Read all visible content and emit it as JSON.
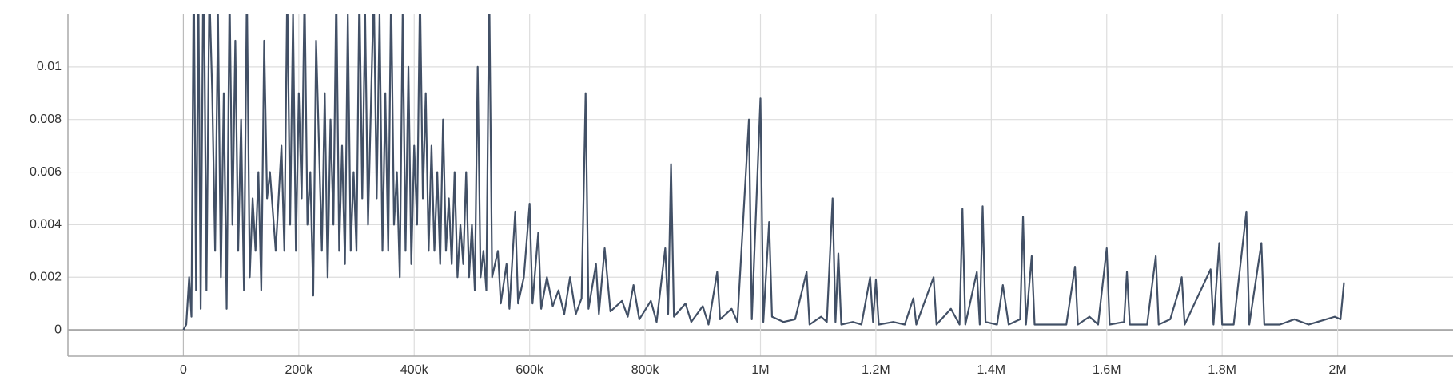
{
  "chart_data": {
    "type": "line",
    "color": "#425066",
    "grid": true,
    "xlim": [
      -200000,
      2200000
    ],
    "ylim": [
      -0.001,
      0.012
    ],
    "xticks": [
      0,
      {
        "value": 200000,
        "label": "200k"
      },
      {
        "value": 400000,
        "label": "400k"
      },
      {
        "value": 600000,
        "label": "600k"
      },
      {
        "value": 800000,
        "label": "800k"
      },
      {
        "value": 1000000,
        "label": "1M"
      },
      {
        "value": 1200000,
        "label": "1.2M"
      },
      {
        "value": 1400000,
        "label": "1.4M"
      },
      {
        "value": 1600000,
        "label": "1.6M"
      },
      {
        "value": 1800000,
        "label": "1.8M"
      },
      {
        "value": 2000000,
        "label": "2M"
      }
    ],
    "yticks": [
      0,
      0.002,
      0.004,
      0.006,
      0.008,
      0.01
    ],
    "x": [
      0,
      5000,
      10000,
      14000,
      18000,
      22000,
      26000,
      30000,
      35000,
      40000,
      45000,
      50000,
      55000,
      60000,
      65000,
      70000,
      75000,
      80000,
      85000,
      90000,
      95000,
      100000,
      105000,
      110000,
      115000,
      120000,
      125000,
      130000,
      135000,
      140000,
      145000,
      150000,
      160000,
      170000,
      175000,
      180000,
      185000,
      190000,
      195000,
      200000,
      205000,
      210000,
      215000,
      220000,
      225000,
      230000,
      240000,
      245000,
      250000,
      255000,
      260000,
      265000,
      270000,
      275000,
      280000,
      285000,
      290000,
      295000,
      300000,
      305000,
      310000,
      315000,
      320000,
      330000,
      335000,
      340000,
      345000,
      350000,
      355000,
      360000,
      365000,
      370000,
      375000,
      380000,
      385000,
      390000,
      395000,
      400000,
      405000,
      410000,
      415000,
      420000,
      425000,
      430000,
      435000,
      440000,
      445000,
      450000,
      455000,
      460000,
      465000,
      470000,
      475000,
      480000,
      485000,
      490000,
      495000,
      500000,
      505000,
      510000,
      515000,
      520000,
      525000,
      530000,
      535000,
      545000,
      550000,
      560000,
      565000,
      575000,
      580000,
      590000,
      600000,
      605000,
      615000,
      620000,
      630000,
      640000,
      650000,
      660000,
      670000,
      680000,
      690000,
      697000,
      702000,
      715000,
      720000,
      730000,
      740000,
      760000,
      770000,
      780000,
      790000,
      810000,
      820000,
      835000,
      840000,
      845000,
      850000,
      870000,
      880000,
      900000,
      910000,
      925000,
      930000,
      950000,
      960000,
      980000,
      985000,
      1000000,
      1005000,
      1015000,
      1020000,
      1040000,
      1060000,
      1080000,
      1085000,
      1105000,
      1115000,
      1125000,
      1130000,
      1135000,
      1140000,
      1160000,
      1175000,
      1190000,
      1195000,
      1200000,
      1205000,
      1230000,
      1250000,
      1265000,
      1270000,
      1300000,
      1305000,
      1330000,
      1345000,
      1350000,
      1355000,
      1375000,
      1380000,
      1385000,
      1390000,
      1410000,
      1420000,
      1430000,
      1450000,
      1455000,
      1460000,
      1470000,
      1475000,
      1500000,
      1530000,
      1545000,
      1550000,
      1570000,
      1585000,
      1600000,
      1605000,
      1630000,
      1635000,
      1640000,
      1670000,
      1685000,
      1690000,
      1710000,
      1725000,
      1730000,
      1735000,
      1780000,
      1785000,
      1795000,
      1800000,
      1820000,
      1842000,
      1847000,
      1868000,
      1873000,
      1900000,
      1925000,
      1950000,
      1980000,
      1995000,
      2005000,
      2011000
    ],
    "values": [
      0,
      0.0002,
      0.002,
      0.0005,
      0.014,
      0.0015,
      0.013,
      0.0008,
      0.015,
      0.0015,
      0.013,
      0.009,
      0.003,
      0.012,
      0.002,
      0.009,
      0.0008,
      0.013,
      0.004,
      0.011,
      0.003,
      0.008,
      0.0015,
      0.013,
      0.002,
      0.005,
      0.003,
      0.006,
      0.0015,
      0.011,
      0.005,
      0.006,
      0.003,
      0.007,
      0.003,
      0.013,
      0.004,
      0.012,
      0.003,
      0.009,
      0.005,
      0.013,
      0.004,
      0.006,
      0.0013,
      0.011,
      0.003,
      0.009,
      0.002,
      0.008,
      0.004,
      0.013,
      0.003,
      0.007,
      0.0025,
      0.012,
      0.003,
      0.006,
      0.003,
      0.013,
      0.005,
      0.012,
      0.004,
      0.013,
      0.005,
      0.012,
      0.003,
      0.009,
      0.003,
      0.013,
      0.004,
      0.006,
      0.002,
      0.012,
      0.003,
      0.01,
      0.0025,
      0.007,
      0.004,
      0.013,
      0.005,
      0.009,
      0.003,
      0.007,
      0.003,
      0.006,
      0.0025,
      0.008,
      0.003,
      0.005,
      0.0025,
      0.006,
      0.002,
      0.004,
      0.0025,
      0.006,
      0.002,
      0.004,
      0.0015,
      0.01,
      0.002,
      0.003,
      0.0015,
      0.013,
      0.002,
      0.003,
      0.001,
      0.0025,
      0.0008,
      0.0045,
      0.001,
      0.002,
      0.0048,
      0.001,
      0.0037,
      0.0008,
      0.002,
      0.0009,
      0.0015,
      0.0006,
      0.002,
      0.0006,
      0.0012,
      0.009,
      0.0008,
      0.0025,
      0.0006,
      0.0031,
      0.0007,
      0.0011,
      0.0005,
      0.0017,
      0.0004,
      0.0011,
      0.0003,
      0.0031,
      0.0006,
      0.0063,
      0.0005,
      0.001,
      0.0003,
      0.0009,
      0.0002,
      0.0022,
      0.0004,
      0.0008,
      0.0003,
      0.008,
      0.0004,
      0.0088,
      0.0003,
      0.0041,
      0.0005,
      0.0003,
      0.0004,
      0.0022,
      0.0002,
      0.0005,
      0.0003,
      0.005,
      0.0003,
      0.0029,
      0.0002,
      0.0003,
      0.0002,
      0.002,
      0.0003,
      0.0019,
      0.0002,
      0.0003,
      0.0002,
      0.0012,
      0.0002,
      0.002,
      0.0002,
      0.0008,
      0.0002,
      0.0046,
      0.0002,
      0.0022,
      0.0002,
      0.0047,
      0.0003,
      0.0002,
      0.0017,
      0.0002,
      0.0004,
      0.0043,
      0.0002,
      0.0028,
      0.0002,
      0.0002,
      0.0002,
      0.0024,
      0.0002,
      0.0005,
      0.0002,
      0.0031,
      0.0002,
      0.0003,
      0.0022,
      0.0002,
      0.0002,
      0.0028,
      0.0002,
      0.0004,
      0.0015,
      0.002,
      0.0002,
      0.0023,
      0.0002,
      0.0033,
      0.0002,
      0.0002,
      0.0045,
      0.0002,
      0.0033,
      0.0002,
      0.0002,
      0.0004,
      0.0002,
      0.0004,
      0.0005,
      0.0004,
      0.0018
    ]
  }
}
